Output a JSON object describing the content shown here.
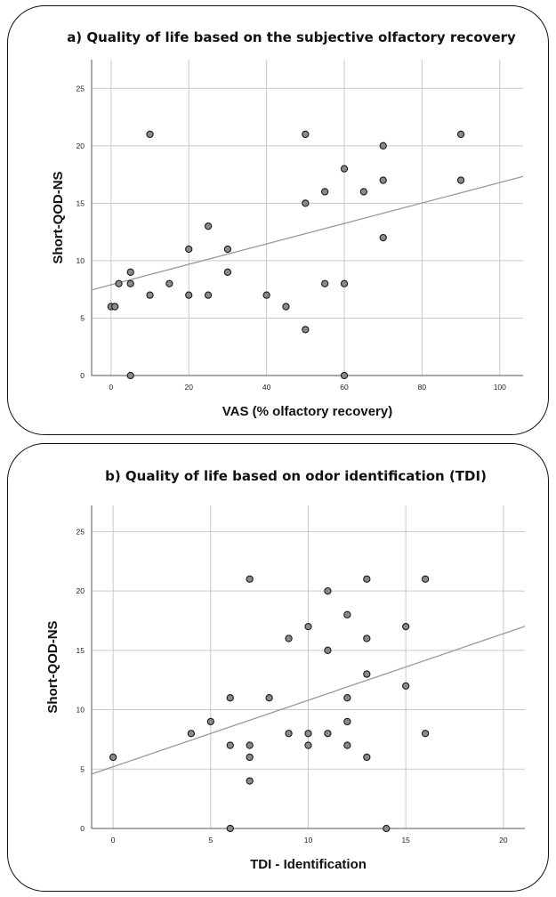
{
  "chart_data": [
    {
      "type": "scatter",
      "title": "a) Quality of life based on the subjective olfactory recovery",
      "xlabel": "VAS (% olfactory recovery)",
      "ylabel": "Short-QOD-NS",
      "xlim": [
        -5,
        106
      ],
      "ylim": [
        0,
        27.5
      ],
      "xticks": [
        "0",
        "20",
        "40",
        "60",
        "80",
        "100"
      ],
      "yticks": [
        "0",
        "5",
        "10",
        "15",
        "20",
        "25"
      ],
      "grid": true,
      "points": [
        {
          "x": 0,
          "y": 6
        },
        {
          "x": 1,
          "y": 6
        },
        {
          "x": 2,
          "y": 8
        },
        {
          "x": 5,
          "y": 9
        },
        {
          "x": 5,
          "y": 8
        },
        {
          "x": 5,
          "y": 0
        },
        {
          "x": 10,
          "y": 21
        },
        {
          "x": 10,
          "y": 7
        },
        {
          "x": 15,
          "y": 8
        },
        {
          "x": 20,
          "y": 11
        },
        {
          "x": 20,
          "y": 7
        },
        {
          "x": 25,
          "y": 13
        },
        {
          "x": 25,
          "y": 7
        },
        {
          "x": 30,
          "y": 11
        },
        {
          "x": 30,
          "y": 9
        },
        {
          "x": 40,
          "y": 7
        },
        {
          "x": 45,
          "y": 6
        },
        {
          "x": 50,
          "y": 21
        },
        {
          "x": 50,
          "y": 15
        },
        {
          "x": 50,
          "y": 4
        },
        {
          "x": 55,
          "y": 16
        },
        {
          "x": 55,
          "y": 8
        },
        {
          "x": 60,
          "y": 18
        },
        {
          "x": 60,
          "y": 8
        },
        {
          "x": 60,
          "y": 0
        },
        {
          "x": 65,
          "y": 16
        },
        {
          "x": 70,
          "y": 20
        },
        {
          "x": 70,
          "y": 17
        },
        {
          "x": 70,
          "y": 12
        },
        {
          "x": 90,
          "y": 21
        },
        {
          "x": 90,
          "y": 17
        }
      ],
      "fit_line": {
        "intercept": 7.9,
        "slope": 0.089
      }
    },
    {
      "type": "scatter",
      "title": "b) Quality of life based on odor identification (TDI)",
      "xlabel": "TDI - Identification",
      "ylabel": "Short-QOD-NS",
      "xlim": [
        -1.1,
        21.1
      ],
      "ylim": [
        0,
        27.2
      ],
      "xticks": [
        "0",
        "5",
        "10",
        "15",
        "20"
      ],
      "yticks": [
        "0",
        "5",
        "10",
        "15",
        "20",
        "25"
      ],
      "grid": true,
      "points": [
        {
          "x": 0,
          "y": 6
        },
        {
          "x": 4,
          "y": 8
        },
        {
          "x": 5,
          "y": 9
        },
        {
          "x": 6,
          "y": 11
        },
        {
          "x": 6,
          "y": 7
        },
        {
          "x": 6,
          "y": 0
        },
        {
          "x": 7,
          "y": 21
        },
        {
          "x": 7,
          "y": 7
        },
        {
          "x": 7,
          "y": 6
        },
        {
          "x": 7,
          "y": 4
        },
        {
          "x": 8,
          "y": 11
        },
        {
          "x": 9,
          "y": 16
        },
        {
          "x": 9,
          "y": 8
        },
        {
          "x": 10,
          "y": 17
        },
        {
          "x": 10,
          "y": 8
        },
        {
          "x": 10,
          "y": 7
        },
        {
          "x": 11,
          "y": 20
        },
        {
          "x": 11,
          "y": 15
        },
        {
          "x": 11,
          "y": 8
        },
        {
          "x": 12,
          "y": 18
        },
        {
          "x": 12,
          "y": 11
        },
        {
          "x": 12,
          "y": 9
        },
        {
          "x": 12,
          "y": 7
        },
        {
          "x": 13,
          "y": 21
        },
        {
          "x": 13,
          "y": 16
        },
        {
          "x": 13,
          "y": 13
        },
        {
          "x": 13,
          "y": 6
        },
        {
          "x": 14,
          "y": 0
        },
        {
          "x": 15,
          "y": 17
        },
        {
          "x": 15,
          "y": 12
        },
        {
          "x": 16,
          "y": 21
        },
        {
          "x": 16,
          "y": 8
        }
      ],
      "fit_line": {
        "intercept": 5.2,
        "slope": 0.56
      }
    }
  ]
}
